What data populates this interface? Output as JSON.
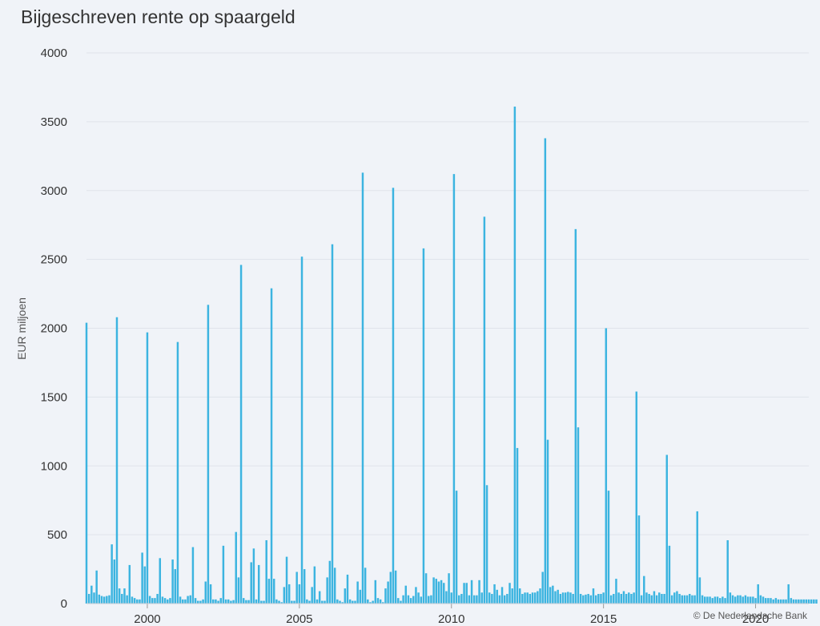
{
  "chart_data": {
    "type": "bar",
    "title": "Bijgeschreven rente op spaargeld",
    "ylabel": "EUR miljoen",
    "xlabel": "",
    "ylim": [
      0,
      4000
    ],
    "yticks": [
      0,
      500,
      1000,
      1500,
      2000,
      2500,
      3000,
      3500,
      4000
    ],
    "xticks": [
      2000,
      2005,
      2010,
      2015,
      2020
    ],
    "xrange": [
      1998,
      2021.75
    ],
    "color": "#3cb4e0",
    "grid": true,
    "legend": "none",
    "series": [
      {
        "start": "1998-01",
        "frequency": "monthly",
        "values": [
          2040,
          70,
          130,
          80,
          240,
          65,
          55,
          50,
          55,
          60,
          430,
          320,
          2080,
          110,
          70,
          110,
          60,
          280,
          50,
          40,
          30,
          30,
          370,
          270,
          1970,
          55,
          40,
          40,
          70,
          330,
          50,
          40,
          30,
          40,
          320,
          250,
          1900,
          50,
          30,
          30,
          55,
          60,
          410,
          40,
          20,
          20,
          30,
          160,
          2170,
          140,
          30,
          30,
          20,
          40,
          420,
          30,
          30,
          20,
          25,
          520,
          190,
          2460,
          40,
          25,
          25,
          300,
          400,
          30,
          280,
          20,
          20,
          460,
          180,
          2290,
          180,
          30,
          20,
          10,
          120,
          340,
          140,
          20,
          20,
          230,
          140,
          2520,
          250,
          30,
          20,
          120,
          270,
          30,
          90,
          20,
          20,
          190,
          310,
          2610,
          260,
          30,
          20,
          10,
          110,
          210,
          30,
          20,
          20,
          160,
          100,
          3130,
          260,
          30,
          10,
          20,
          170,
          40,
          30,
          10,
          110,
          160,
          230,
          3020,
          240,
          40,
          20,
          60,
          130,
          60,
          40,
          55,
          120,
          80,
          50,
          2580,
          220,
          55,
          60,
          190,
          180,
          160,
          170,
          150,
          90,
          220,
          80,
          3120,
          820,
          60,
          70,
          150,
          150,
          60,
          170,
          60,
          60,
          170,
          80,
          2810,
          860,
          80,
          70,
          140,
          100,
          60,
          120,
          60,
          70,
          150,
          110,
          3610,
          1130,
          110,
          70,
          80,
          80,
          70,
          80,
          80,
          90,
          110,
          230,
          3380,
          1190,
          120,
          130,
          90,
          100,
          70,
          80,
          80,
          85,
          80,
          70,
          2720,
          1280,
          70,
          60,
          65,
          70,
          60,
          110,
          60,
          70,
          70,
          80,
          2000,
          820,
          60,
          70,
          180,
          80,
          70,
          90,
          70,
          80,
          70,
          80,
          1540,
          640,
          60,
          200,
          80,
          70,
          60,
          90,
          60,
          80,
          70,
          70,
          1080,
          420,
          60,
          80,
          90,
          70,
          60,
          60,
          60,
          70,
          60,
          60,
          670,
          190,
          60,
          50,
          50,
          50,
          40,
          50,
          50,
          40,
          50,
          40,
          460,
          80,
          60,
          50,
          60,
          60,
          50,
          60,
          50,
          50,
          50,
          40,
          140,
          60,
          50,
          40,
          40,
          40,
          30,
          40,
          30,
          30,
          30,
          30,
          140,
          40,
          30,
          30,
          30,
          30,
          30,
          30,
          30,
          30,
          30,
          30
        ]
      }
    ]
  },
  "credit": "© De Nederlandsche Bank"
}
